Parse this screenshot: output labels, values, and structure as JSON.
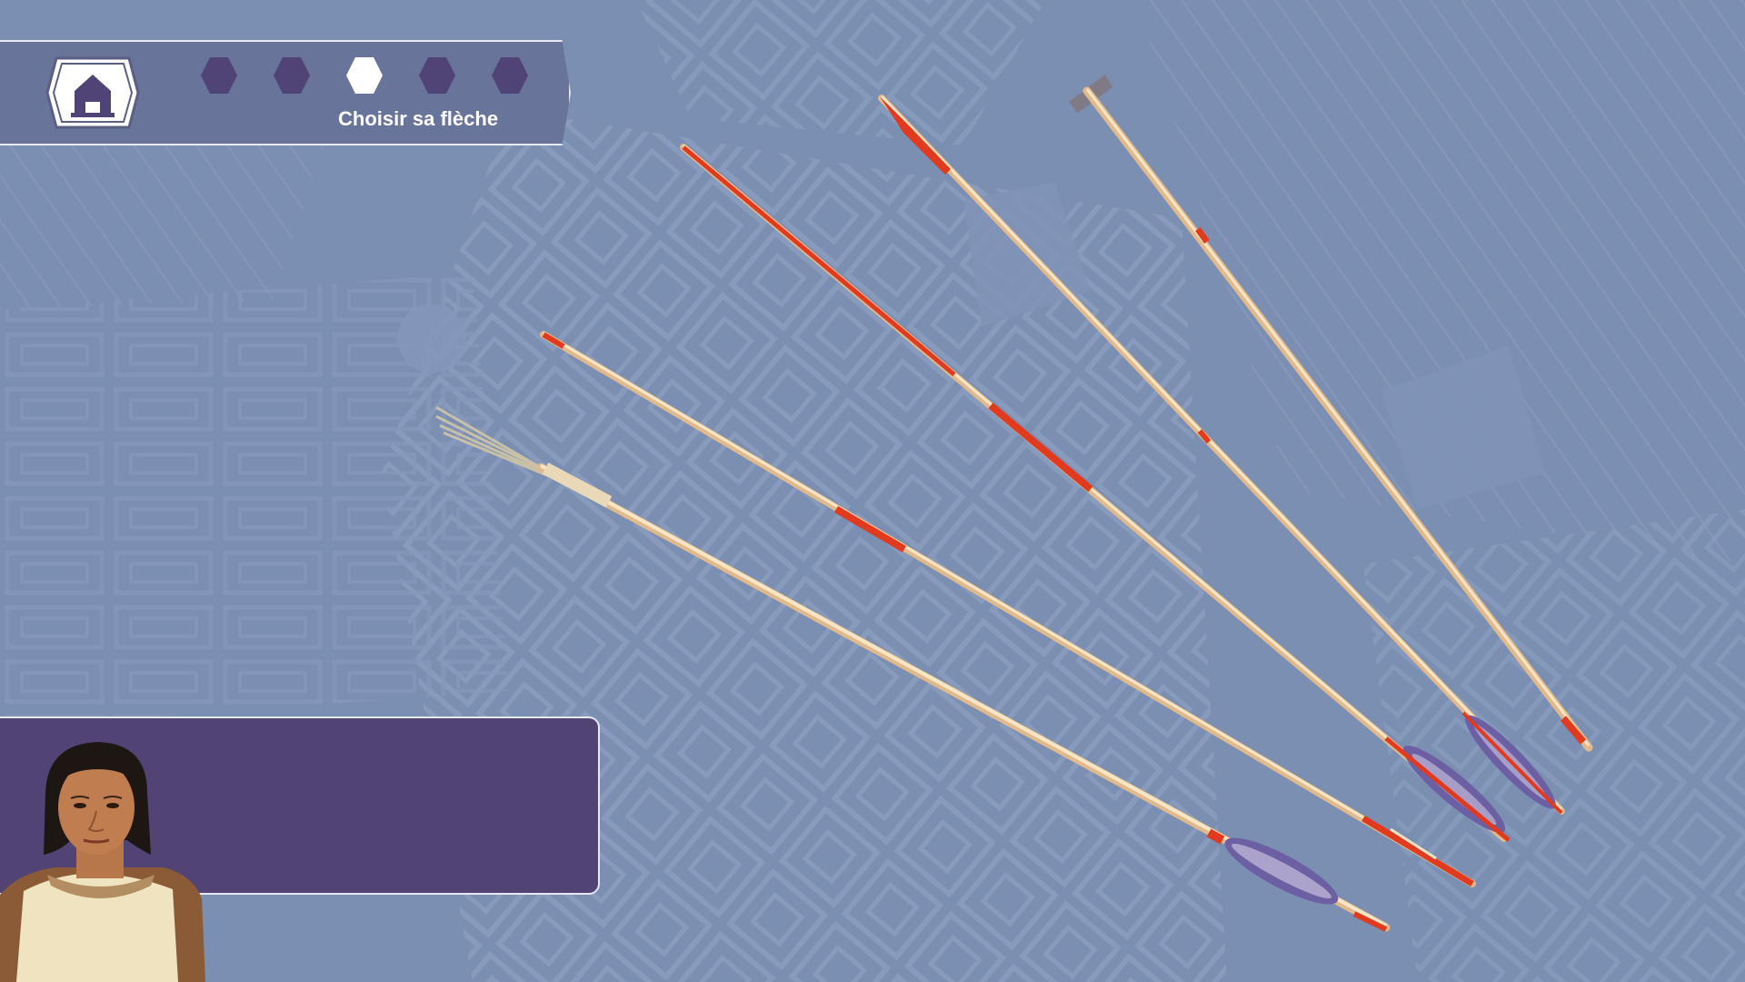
{
  "progress": {
    "steps": [
      {
        "state": "pending"
      },
      {
        "state": "pending"
      },
      {
        "state": "current"
      },
      {
        "state": "pending"
      },
      {
        "state": "pending"
      }
    ],
    "current_label": "Choisir sa flèche"
  },
  "dialog": {
    "text": ""
  },
  "arrows": [
    {
      "id": "arrow-fish-spear",
      "tip": "multi-prong"
    },
    {
      "id": "arrow-red-tip-long",
      "tip": "point"
    },
    {
      "id": "arrow-red-shaft",
      "tip": "point"
    },
    {
      "id": "arrow-barbed",
      "tip": "point"
    },
    {
      "id": "arrow-blunt",
      "tip": "blunt"
    }
  ],
  "colors": {
    "background": "#7a8fb2",
    "panel": "#69749b",
    "dialog": "#514474",
    "step_pending": "#4f4475",
    "step_current": "#ffffff",
    "shaft": "#f1d9b2",
    "accent_red": "#e23a1e",
    "feather": "#6c5fa3"
  },
  "icons": {
    "home": "home-icon"
  }
}
